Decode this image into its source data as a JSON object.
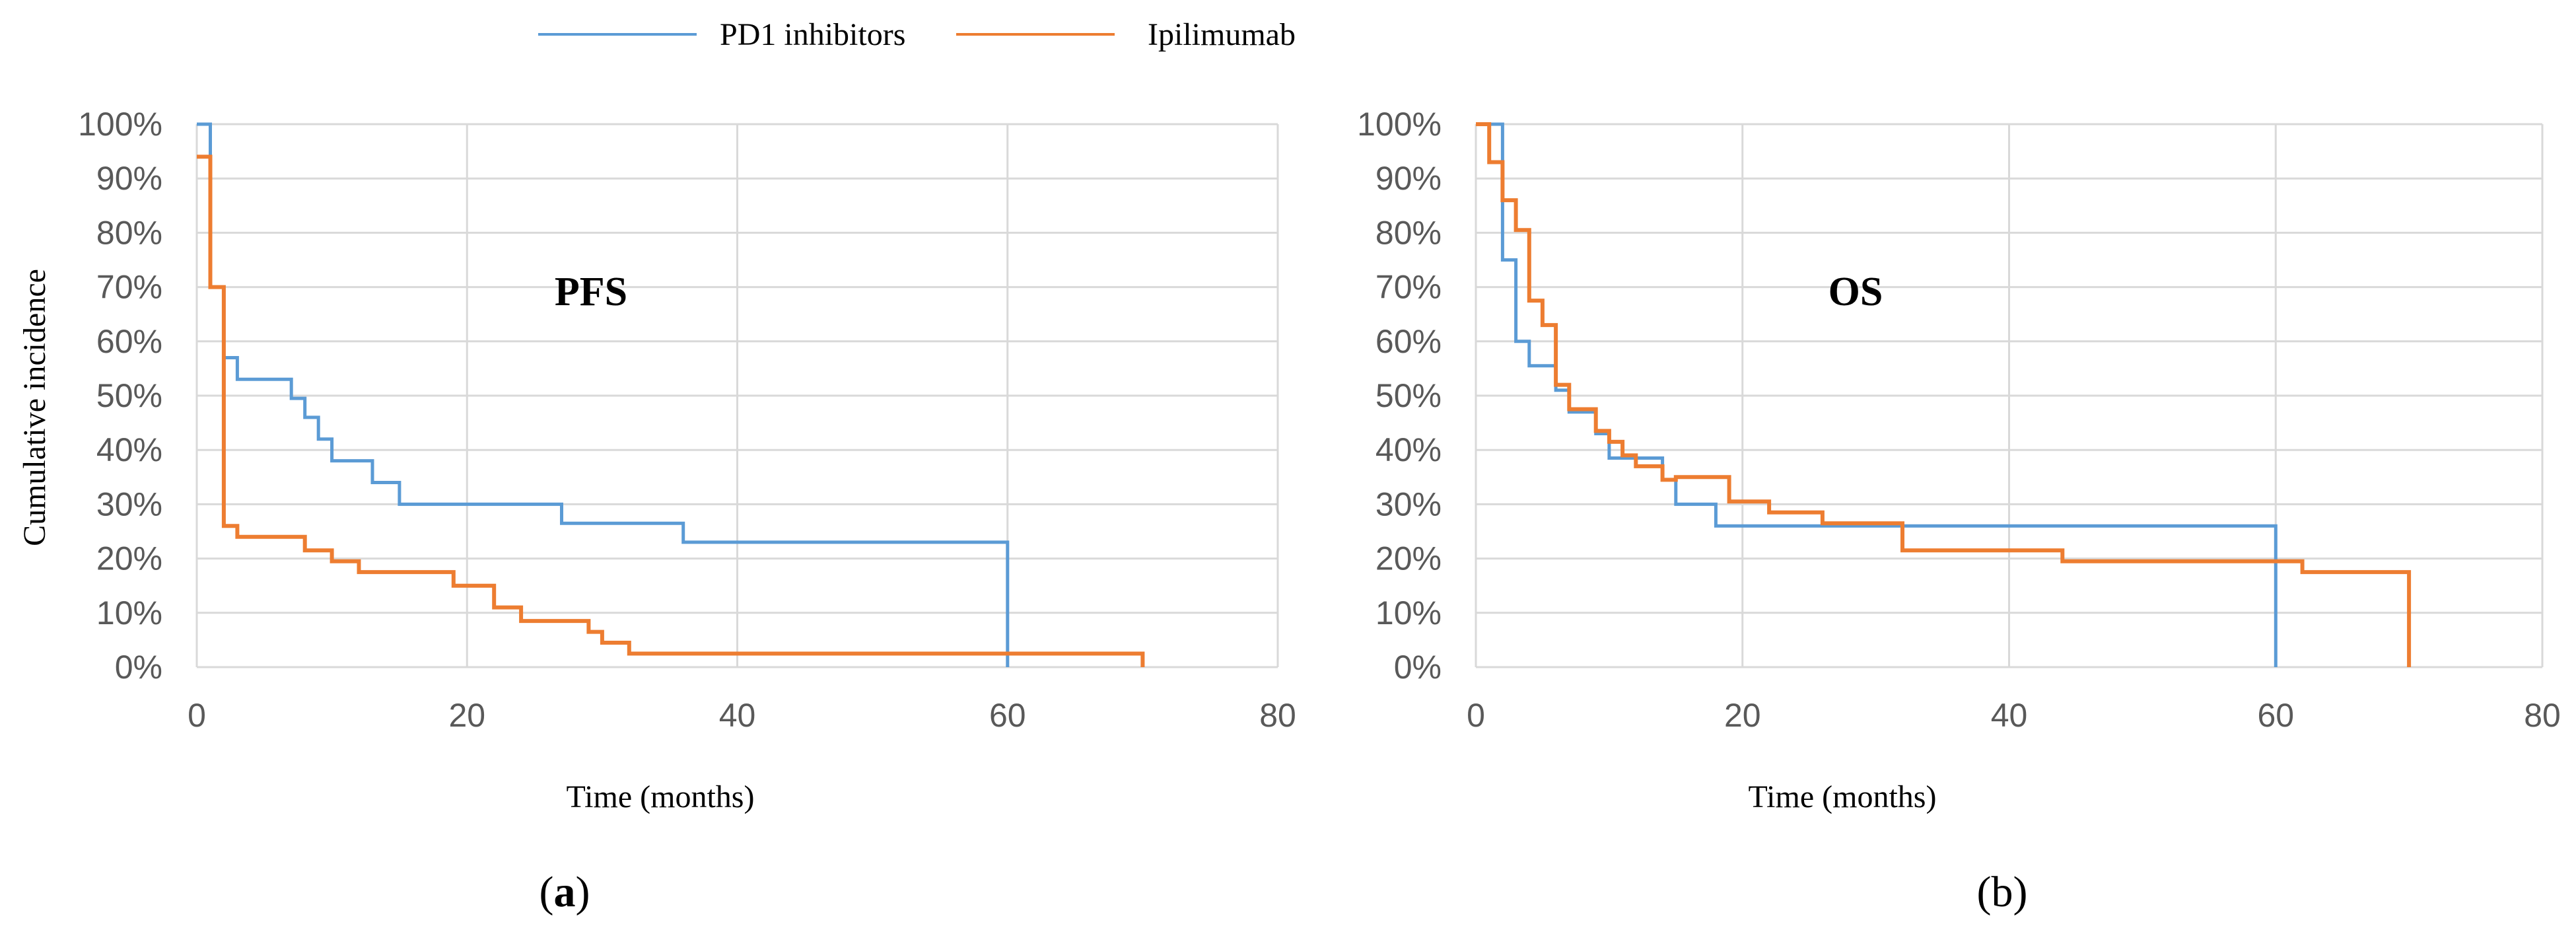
{
  "legend": {
    "items": [
      {
        "label": "PD1 inhibitors",
        "color": "#5B9BD5"
      },
      {
        "label": "Ipilimumab",
        "color": "#ED7D31"
      }
    ]
  },
  "chart_data": [
    {
      "type": "line",
      "step": true,
      "title": "PFS",
      "panel_label": "(a)",
      "xlabel": "Time (months)",
      "ylabel": "Cumulative incidence",
      "xlim": [
        0,
        80
      ],
      "ylim": [
        0,
        100
      ],
      "x_ticks": [
        "0",
        "20",
        "40",
        "60",
        "80"
      ],
      "y_ticks": [
        "0%",
        "10%",
        "20%",
        "30%",
        "40%",
        "50%",
        "60%",
        "70%",
        "80%",
        "90%",
        "100%"
      ],
      "grid": true,
      "legend_position": "top",
      "series": [
        {
          "name": "PD1 inhibitors",
          "color": "#5B9BD5",
          "x": [
            0,
            1,
            2,
            3,
            7,
            8,
            9,
            10,
            13,
            15,
            27,
            36,
            60,
            60
          ],
          "y": [
            100,
            70,
            57,
            53,
            49.5,
            46,
            42,
            38,
            34,
            30,
            26.5,
            23,
            23,
            0
          ]
        },
        {
          "name": "Ipilimumab",
          "color": "#ED7D31",
          "x": [
            0,
            1,
            2,
            3,
            8,
            10,
            12,
            19,
            22,
            24,
            29,
            30,
            32,
            70
          ],
          "y": [
            94,
            70,
            26,
            24,
            21.5,
            19.5,
            17.5,
            15,
            11,
            8.5,
            6.5,
            4.5,
            2.5,
            0
          ]
        }
      ]
    },
    {
      "type": "line",
      "step": true,
      "title": "OS",
      "panel_label": "(b)",
      "xlabel": "Time (months)",
      "ylabel": "",
      "xlim": [
        0,
        80
      ],
      "ylim": [
        0,
        100
      ],
      "x_ticks": [
        "0",
        "20",
        "40",
        "60",
        "80"
      ],
      "y_ticks": [
        "0%",
        "10%",
        "20%",
        "30%",
        "40%",
        "50%",
        "60%",
        "70%",
        "80%",
        "90%",
        "100%"
      ],
      "grid": true,
      "series": [
        {
          "name": "PD1 inhibitors",
          "color": "#5B9BD5",
          "x": [
            0,
            2,
            3,
            4,
            6,
            7,
            9,
            10,
            14,
            15,
            18,
            60,
            60
          ],
          "y": [
            100,
            75,
            60,
            55.5,
            51,
            47,
            43,
            38.5,
            34.5,
            30,
            26,
            26,
            0
          ]
        },
        {
          "name": "Ipilimumab",
          "color": "#ED7D31",
          "x": [
            0,
            1,
            2,
            3,
            4,
            5,
            6,
            7,
            9,
            10,
            11,
            12,
            14,
            15,
            19,
            22,
            26,
            32,
            44,
            62,
            70
          ],
          "y": [
            100,
            93,
            86,
            80.5,
            67.5,
            63,
            52,
            47.5,
            43.5,
            41.5,
            39,
            37,
            34.5,
            35,
            30.5,
            28.5,
            26.5,
            21.5,
            19.5,
            17.5,
            0
          ]
        }
      ]
    }
  ]
}
